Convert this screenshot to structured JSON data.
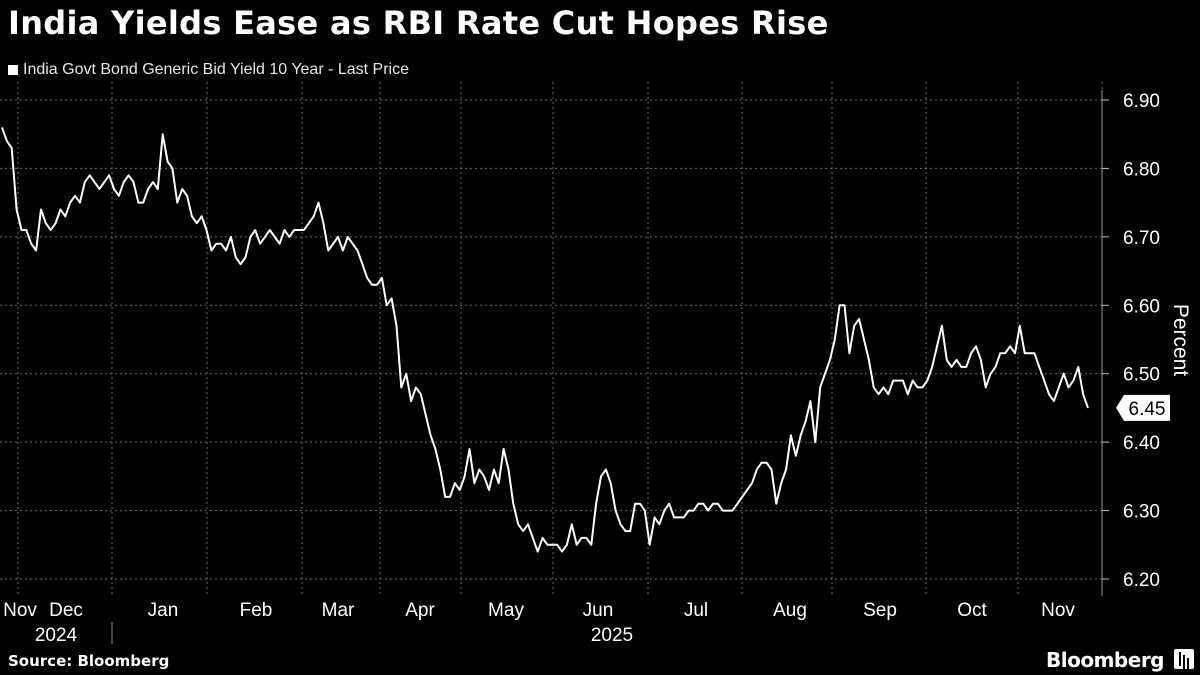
{
  "title": "India Yields Ease as RBI Rate Cut Hopes Rise",
  "legend_label": "India Govt Bond Generic Bid Yield 10 Year - Last Price",
  "source": "Source: Bloomberg",
  "brand": "Bloomberg",
  "chart_data": {
    "type": "line",
    "title": "India Yields Ease as RBI Rate Cut Hopes Rise",
    "series": [
      {
        "name": "India Govt Bond Generic Bid Yield 10 Year - Last Price",
        "color": "#ffffff",
        "values": [
          6.86,
          6.84,
          6.83,
          6.74,
          6.71,
          6.71,
          6.69,
          6.68,
          6.74,
          6.72,
          6.71,
          6.72,
          6.74,
          6.73,
          6.75,
          6.76,
          6.75,
          6.78,
          6.79,
          6.78,
          6.77,
          6.78,
          6.79,
          6.77,
          6.76,
          6.78,
          6.79,
          6.78,
          6.75,
          6.75,
          6.77,
          6.78,
          6.77,
          6.85,
          6.81,
          6.8,
          6.75,
          6.77,
          6.76,
          6.73,
          6.72,
          6.73,
          6.71,
          6.68,
          6.69,
          6.69,
          6.68,
          6.7,
          6.67,
          6.66,
          6.67,
          6.7,
          6.71,
          6.69,
          6.7,
          6.71,
          6.7,
          6.69,
          6.71,
          6.7,
          6.71,
          6.71,
          6.71,
          6.72,
          6.73,
          6.75,
          6.72,
          6.68,
          6.69,
          6.7,
          6.68,
          6.7,
          6.69,
          6.68,
          6.66,
          6.64,
          6.63,
          6.63,
          6.64,
          6.6,
          6.61,
          6.57,
          6.48,
          6.5,
          6.46,
          6.48,
          6.47,
          6.44,
          6.41,
          6.39,
          6.36,
          6.32,
          6.32,
          6.34,
          6.33,
          6.35,
          6.39,
          6.34,
          6.36,
          6.35,
          6.33,
          6.36,
          6.34,
          6.39,
          6.36,
          6.31,
          6.28,
          6.27,
          6.28,
          6.26,
          6.24,
          6.26,
          6.25,
          6.25,
          6.25,
          6.24,
          6.25,
          6.28,
          6.25,
          6.26,
          6.26,
          6.25,
          6.31,
          6.35,
          6.36,
          6.34,
          6.3,
          6.28,
          6.27,
          6.27,
          6.31,
          6.31,
          6.3,
          6.25,
          6.29,
          6.28,
          6.3,
          6.31,
          6.29,
          6.29,
          6.29,
          6.3,
          6.3,
          6.31,
          6.31,
          6.3,
          6.31,
          6.31,
          6.3,
          6.3,
          6.3,
          6.31,
          6.32,
          6.33,
          6.34,
          6.36,
          6.37,
          6.37,
          6.36,
          6.31,
          6.34,
          6.36,
          6.41,
          6.38,
          6.41,
          6.43,
          6.46,
          6.4,
          6.48,
          6.5,
          6.52,
          6.55,
          6.6,
          6.6,
          6.53,
          6.57,
          6.58,
          6.55,
          6.52,
          6.48,
          6.47,
          6.48,
          6.47,
          6.49,
          6.49,
          6.49,
          6.47,
          6.49,
          6.48,
          6.48,
          6.49,
          6.51,
          6.54,
          6.57,
          6.52,
          6.51,
          6.52,
          6.51,
          6.51,
          6.53,
          6.54,
          6.52,
          6.48,
          6.5,
          6.51,
          6.53,
          6.53,
          6.54,
          6.53,
          6.57,
          6.53,
          6.53,
          6.53,
          6.51,
          6.49,
          6.47,
          6.46,
          6.48,
          6.5,
          6.48,
          6.49,
          6.51,
          6.47,
          6.45
        ]
      }
    ],
    "x_month_labels": [
      "Nov",
      "Dec",
      "Jan",
      "Feb",
      "Mar",
      "Apr",
      "May",
      "Jun",
      "Jul",
      "Aug",
      "Sep",
      "Oct",
      "Nov"
    ],
    "x_year_labels": [
      "2024",
      "2025"
    ],
    "y_ticks": [
      "6.20",
      "6.30",
      "6.40",
      "6.50",
      "6.60",
      "6.70",
      "6.80",
      "6.90"
    ],
    "ylim": [
      6.2,
      6.9
    ],
    "ylabel": "Percent",
    "last_value_label": "6.45",
    "grid": true,
    "y_axis_side": "right"
  }
}
